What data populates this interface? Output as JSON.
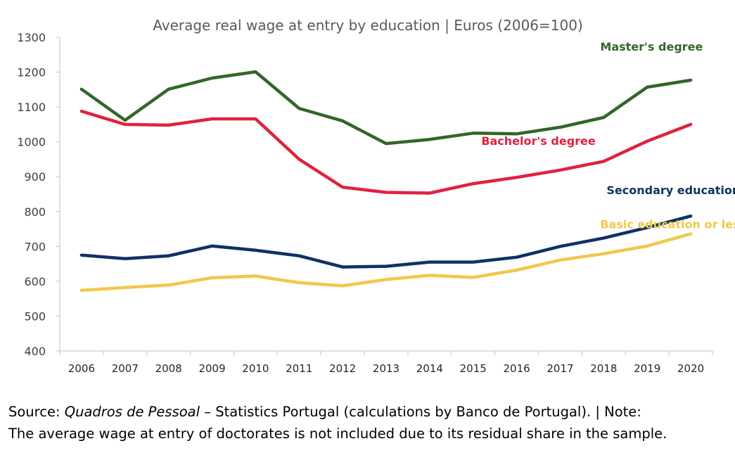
{
  "chart_data": {
    "type": "line",
    "title": "Average real wage at entry by education | Euros (2006=100)",
    "xlabel": "",
    "ylabel": "",
    "ylim": [
      400,
      1300
    ],
    "yticks": [
      400,
      500,
      600,
      700,
      800,
      900,
      1000,
      1100,
      1200,
      1300
    ],
    "x": [
      "2006",
      "2007",
      "2008",
      "2009",
      "2010",
      "2011",
      "2012",
      "2013",
      "2014",
      "2015",
      "2016",
      "2017",
      "2018",
      "2019",
      "2020"
    ],
    "grid": false,
    "series": [
      {
        "name": "Master's degree",
        "color": "#33662a",
        "values": [
          1151,
          1062,
          1151,
          1183,
          1201,
          1096,
          1060,
          995,
          1007,
          1025,
          1023,
          1042,
          1070,
          1157,
          1177
        ]
      },
      {
        "name": "Bachelor's degree",
        "color": "#e0223f",
        "values": [
          1088,
          1050,
          1048,
          1066,
          1066,
          950,
          870,
          855,
          853,
          880,
          898,
          919,
          944,
          1002,
          1050
        ]
      },
      {
        "name": "Secondary education",
        "color": "#0f3264",
        "values": [
          675,
          665,
          673,
          701,
          689,
          673,
          641,
          643,
          655,
          655,
          669,
          700,
          724,
          754,
          787
        ]
      },
      {
        "name": "Basic education or less",
        "color": "#f0c84a",
        "values": [
          574,
          582,
          589,
          610,
          615,
          596,
          587,
          605,
          617,
          611,
          632,
          661,
          679,
          701,
          736
        ]
      }
    ]
  },
  "footer": {
    "source_prefix": "Source: ",
    "source_italic": "Quadros de Pessoal",
    "source_rest": " – Statistics Portugal (calculations by Banco de Portugal). | Note:",
    "note_line2": "The average wage at entry of doctorates is not included due to its residual share in the sample."
  }
}
